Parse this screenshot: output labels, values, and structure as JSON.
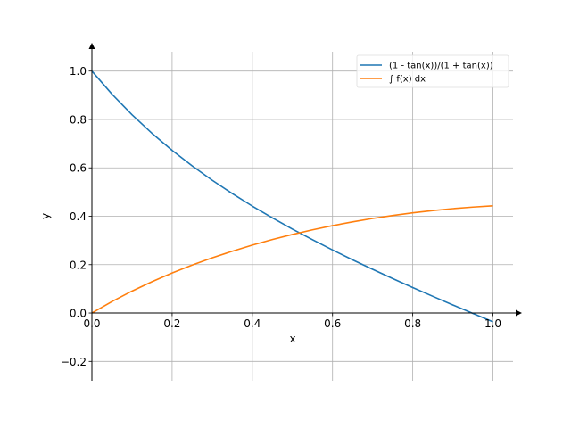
{
  "chart_data": {
    "type": "line",
    "title": "",
    "xlabel": "x",
    "ylabel": "y",
    "xlim": [
      0.0,
      1.05
    ],
    "ylim": [
      -0.28,
      1.08
    ],
    "xticks": [
      0.0,
      0.2,
      0.4,
      0.6,
      0.8,
      1.0
    ],
    "xtick_labels": [
      "0.0",
      "0.2",
      "0.4",
      "0.6",
      "0.8",
      "1.0"
    ],
    "yticks": [
      -0.2,
      0.0,
      0.2,
      0.4,
      0.6,
      0.8,
      1.0
    ],
    "ytick_labels": [
      "−0.2",
      "0.0",
      "0.2",
      "0.4",
      "0.6",
      "0.8",
      "1.0"
    ],
    "grid": true,
    "legend_position": "top-right",
    "series": [
      {
        "name": "(1 - tan(x))/(1 + tan(x))",
        "color": "#1f77b4",
        "x": [
          0.0,
          0.05,
          0.1,
          0.15,
          0.2,
          0.25,
          0.3,
          0.35,
          0.4,
          0.45,
          0.5,
          0.55,
          0.6,
          0.65,
          0.7,
          0.75,
          0.8,
          0.85,
          0.9,
          0.95,
          1.0
        ],
        "y": [
          1.0,
          0.9048,
          0.8195,
          0.7424,
          0.6723,
          0.6082,
          0.5488,
          0.4937,
          0.4419,
          0.3932,
          0.3469,
          0.3029,
          0.2606,
          0.2199,
          0.1807,
          0.1425,
          0.1053,
          0.069,
          0.0334,
          -0.0016,
          -0.0363
        ]
      },
      {
        "name": "∫ f(x) dx",
        "color": "#ff7f0e",
        "x": [
          0.0,
          0.05,
          0.1,
          0.15,
          0.2,
          0.25,
          0.3,
          0.35,
          0.4,
          0.45,
          0.5,
          0.55,
          0.6,
          0.65,
          0.7,
          0.75,
          0.8,
          0.85,
          0.9,
          0.95,
          1.0
        ],
        "y": [
          0.0,
          0.0475,
          0.0905,
          0.1297,
          0.1654,
          0.1981,
          0.228,
          0.2555,
          0.2806,
          0.3036,
          0.3246,
          0.3438,
          0.3611,
          0.3767,
          0.3907,
          0.4031,
          0.414,
          0.4234,
          0.4313,
          0.4378,
          0.443
        ]
      }
    ]
  }
}
